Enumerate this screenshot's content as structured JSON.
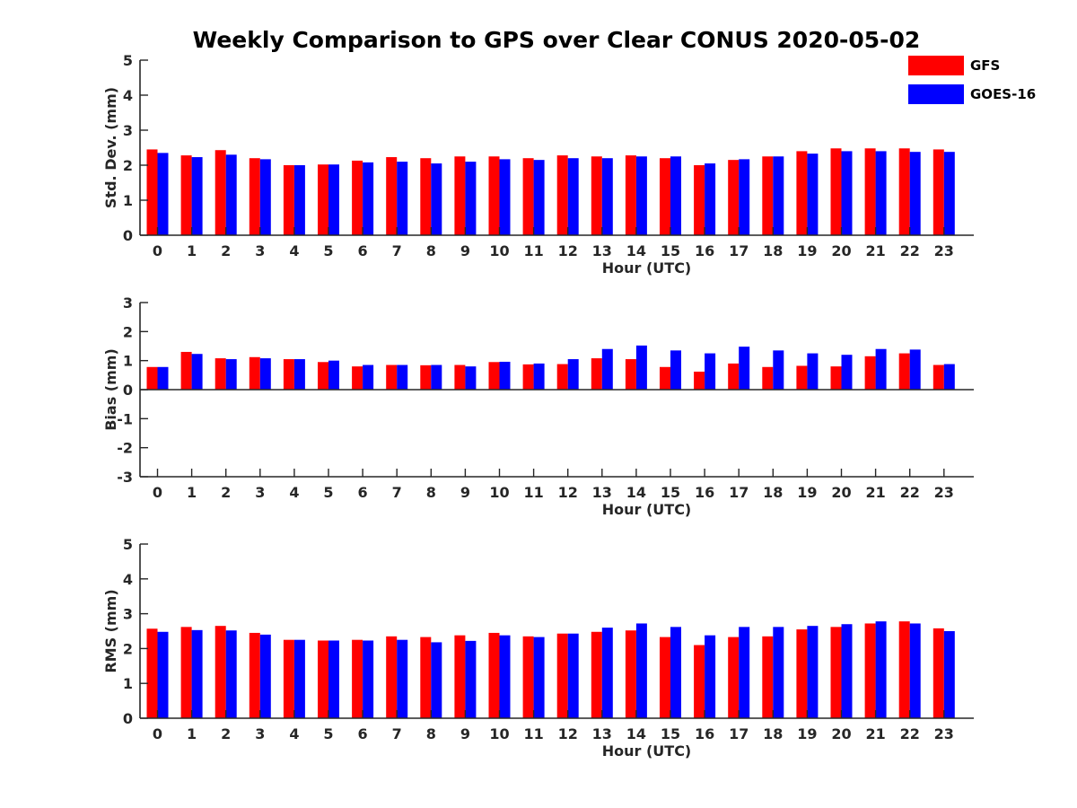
{
  "title": "Weekly Comparison to GPS over Clear CONUS 2020-05-02",
  "legend": [
    {
      "name": "GFS",
      "color": "#ff0000"
    },
    {
      "name": "GOES-16",
      "color": "#0000ff"
    }
  ],
  "chart_data": [
    {
      "type": "bar",
      "ylabel": "Std. Dev. (mm)",
      "xlabel": "Hour (UTC)",
      "ylim": [
        0,
        5
      ],
      "yticks": [
        0,
        1,
        2,
        3,
        4,
        5
      ],
      "categories": [
        "0",
        "1",
        "2",
        "3",
        "4",
        "5",
        "6",
        "7",
        "8",
        "9",
        "10",
        "11",
        "12",
        "13",
        "14",
        "15",
        "16",
        "17",
        "18",
        "19",
        "20",
        "21",
        "22",
        "23"
      ],
      "series": [
        {
          "name": "GFS",
          "color": "#ff0000",
          "values": [
            2.45,
            2.28,
            2.43,
            2.2,
            2.0,
            2.02,
            2.13,
            2.23,
            2.2,
            2.25,
            2.25,
            2.2,
            2.28,
            2.25,
            2.28,
            2.2,
            2.0,
            2.15,
            2.25,
            2.4,
            2.48,
            2.48,
            2.48,
            2.45
          ]
        },
        {
          "name": "GOES-16",
          "color": "#0000ff",
          "values": [
            2.35,
            2.23,
            2.3,
            2.17,
            2.0,
            2.02,
            2.08,
            2.1,
            2.05,
            2.1,
            2.17,
            2.15,
            2.2,
            2.2,
            2.25,
            2.25,
            2.05,
            2.17,
            2.25,
            2.33,
            2.4,
            2.4,
            2.38,
            2.38
          ]
        }
      ]
    },
    {
      "type": "bar",
      "ylabel": "Bias (mm)",
      "xlabel": "Hour (UTC)",
      "ylim": [
        -3,
        3
      ],
      "yticks": [
        -3,
        -2,
        -1,
        0,
        1,
        2,
        3
      ],
      "categories": [
        "0",
        "1",
        "2",
        "3",
        "4",
        "5",
        "6",
        "7",
        "8",
        "9",
        "10",
        "11",
        "12",
        "13",
        "14",
        "15",
        "16",
        "17",
        "18",
        "19",
        "20",
        "21",
        "22",
        "23"
      ],
      "series": [
        {
          "name": "GFS",
          "color": "#ff0000",
          "values": [
            0.78,
            1.3,
            1.08,
            1.12,
            1.05,
            0.95,
            0.8,
            0.85,
            0.84,
            0.85,
            0.95,
            0.87,
            0.88,
            1.08,
            1.05,
            0.78,
            0.62,
            0.9,
            0.78,
            0.82,
            0.8,
            1.15,
            1.25,
            0.85
          ]
        },
        {
          "name": "GOES-16",
          "color": "#0000ff",
          "values": [
            0.78,
            1.23,
            1.05,
            1.08,
            1.05,
            1.0,
            0.85,
            0.85,
            0.85,
            0.8,
            0.96,
            0.9,
            1.05,
            1.4,
            1.52,
            1.35,
            1.25,
            1.48,
            1.35,
            1.25,
            1.2,
            1.4,
            1.38,
            0.88
          ]
        }
      ]
    },
    {
      "type": "bar",
      "ylabel": "RMS (mm)",
      "xlabel": "Hour (UTC)",
      "ylim": [
        0,
        5
      ],
      "yticks": [
        0,
        1,
        2,
        3,
        4,
        5
      ],
      "categories": [
        "0",
        "1",
        "2",
        "3",
        "4",
        "5",
        "6",
        "7",
        "8",
        "9",
        "10",
        "11",
        "12",
        "13",
        "14",
        "15",
        "16",
        "17",
        "18",
        "19",
        "20",
        "21",
        "22",
        "23"
      ],
      "series": [
        {
          "name": "GFS",
          "color": "#ff0000",
          "values": [
            2.57,
            2.62,
            2.65,
            2.45,
            2.25,
            2.23,
            2.25,
            2.35,
            2.33,
            2.38,
            2.45,
            2.35,
            2.43,
            2.48,
            2.52,
            2.33,
            2.1,
            2.33,
            2.35,
            2.55,
            2.62,
            2.72,
            2.78,
            2.58
          ]
        },
        {
          "name": "GOES-16",
          "color": "#0000ff",
          "values": [
            2.48,
            2.53,
            2.52,
            2.4,
            2.25,
            2.23,
            2.23,
            2.25,
            2.18,
            2.22,
            2.38,
            2.33,
            2.43,
            2.6,
            2.72,
            2.62,
            2.38,
            2.62,
            2.62,
            2.65,
            2.7,
            2.78,
            2.72,
            2.5
          ]
        }
      ]
    }
  ]
}
